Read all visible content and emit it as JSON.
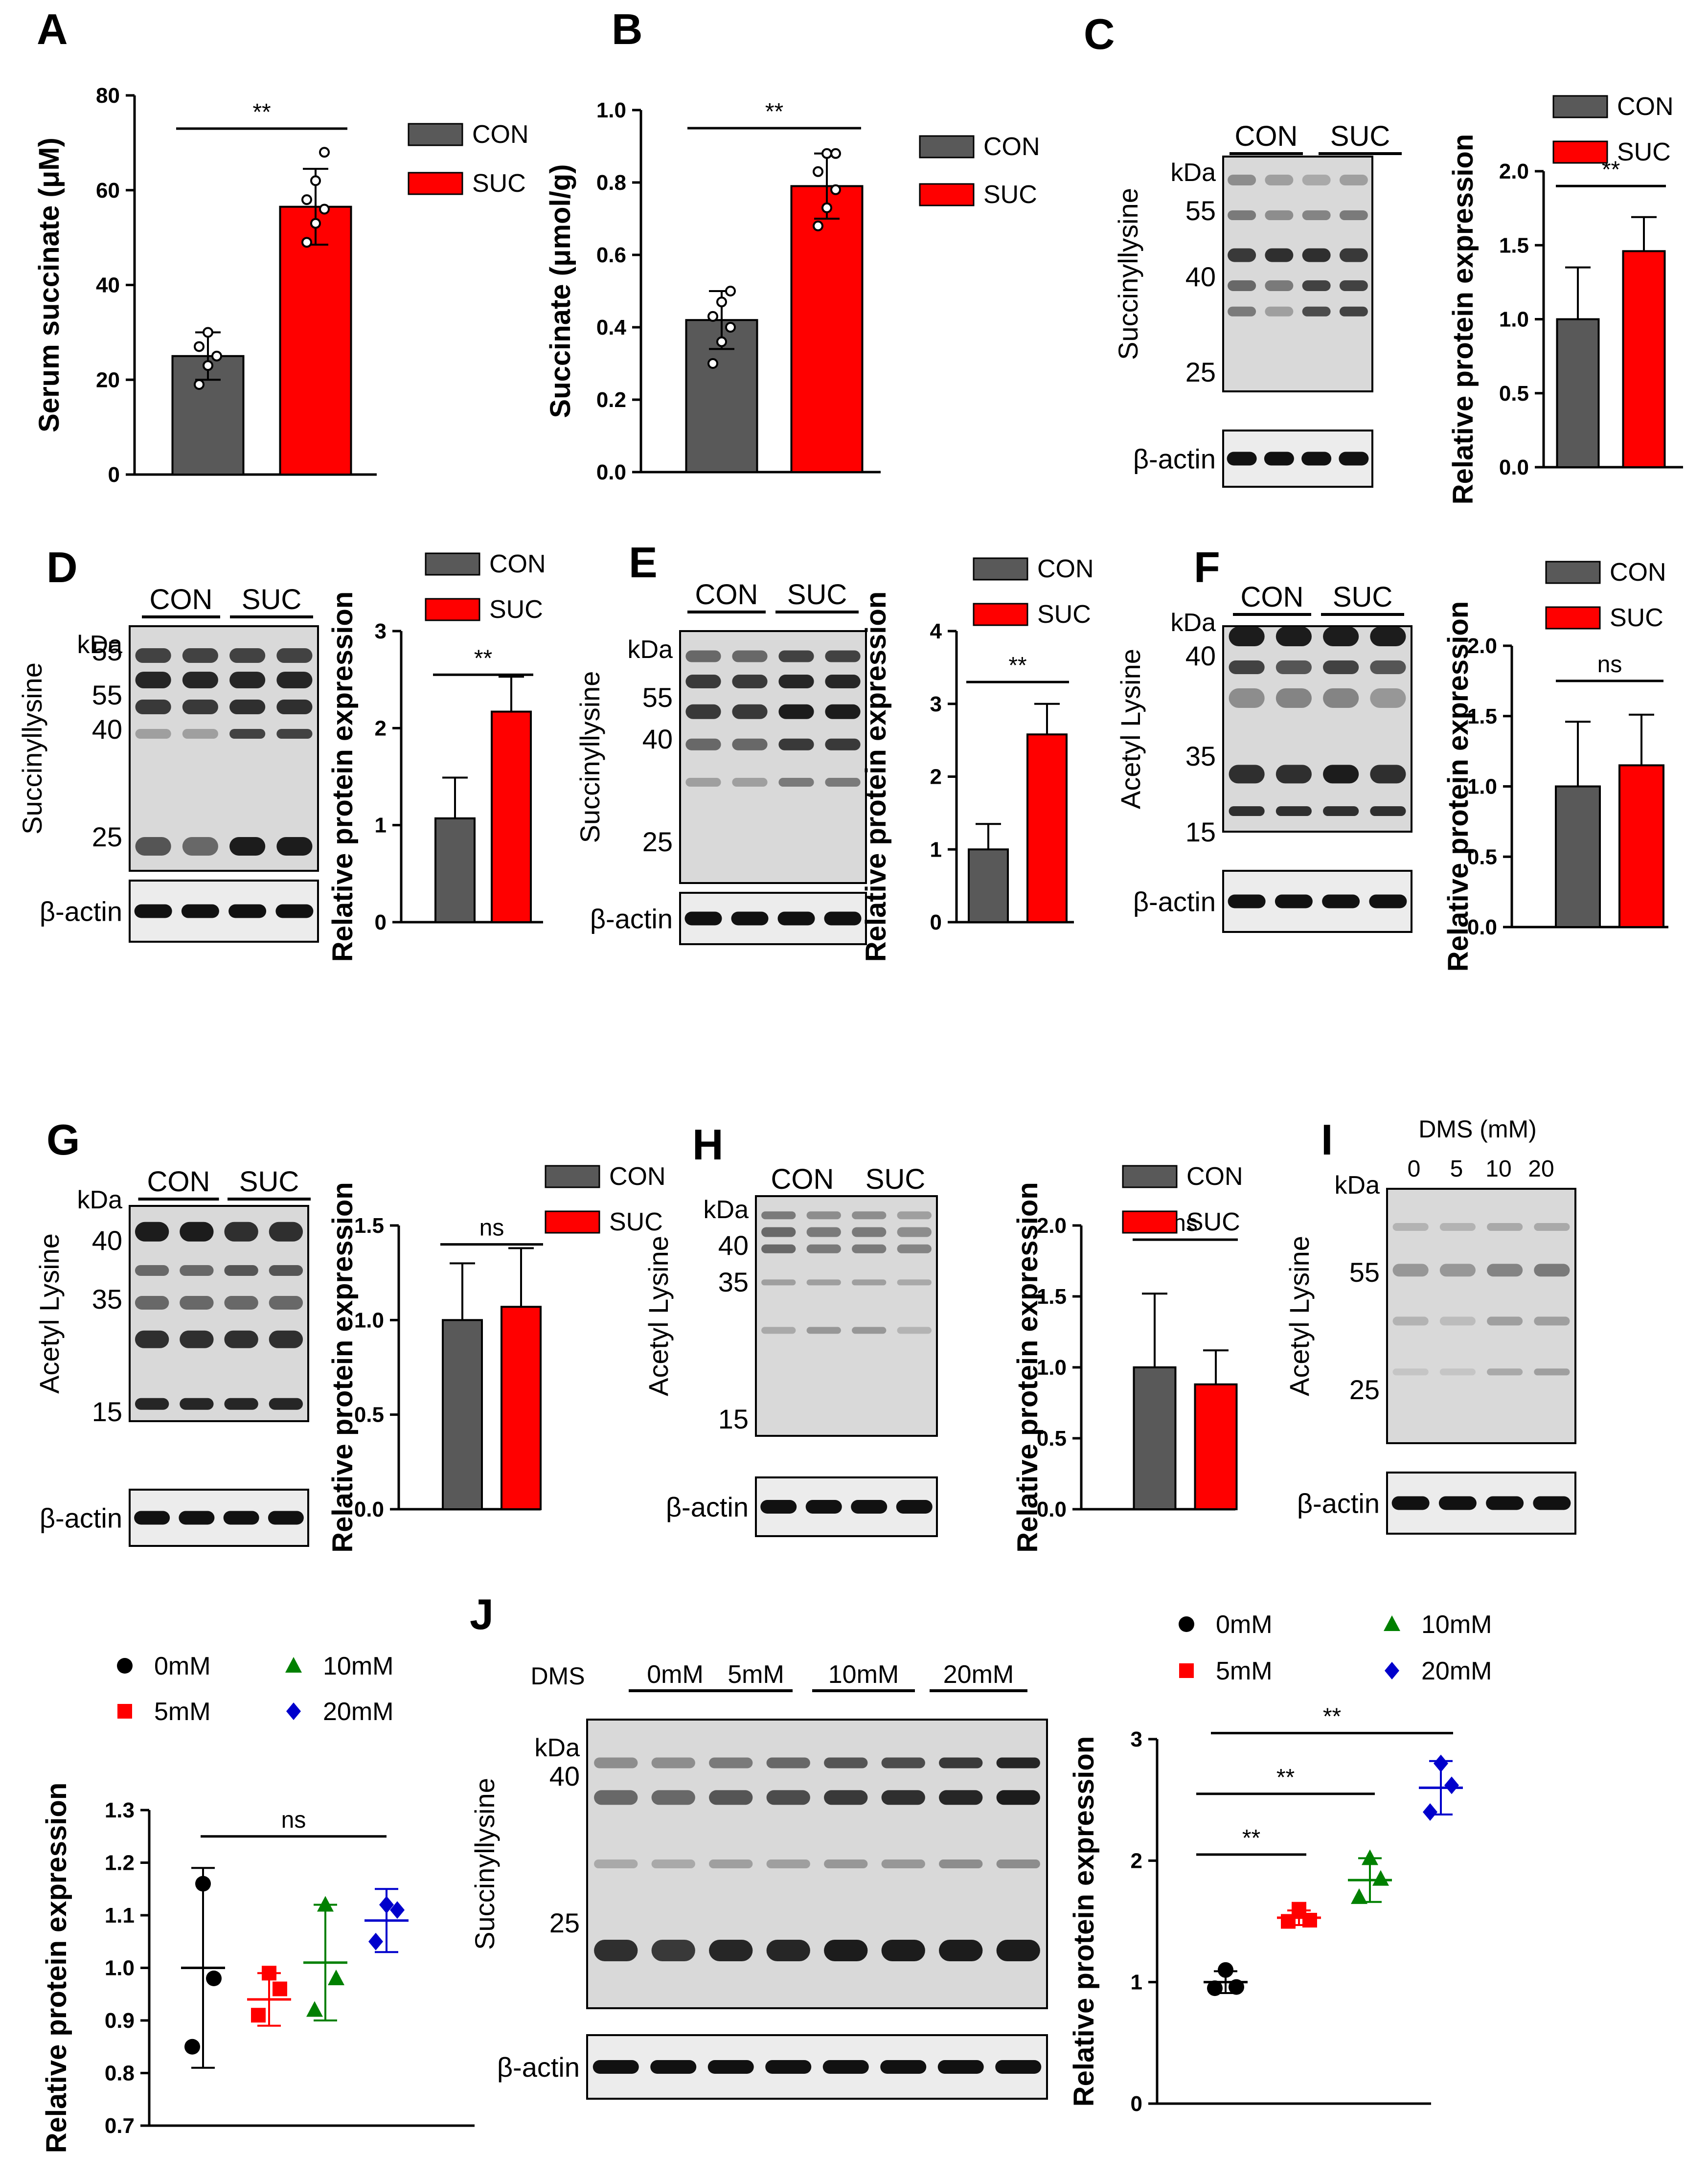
{
  "colors": {
    "con": "#595959",
    "suc": "#ff0000",
    "c0": "#000000",
    "c5": "#ff0000",
    "c10": "#008000",
    "c20": "#0000cc"
  },
  "panels": {
    "A": {
      "letter": "A"
    },
    "B": {
      "letter": "B"
    },
    "C": {
      "letter": "C",
      "blot_title": "Succinyllysine",
      "kda": "kDa",
      "markers": [
        "55",
        "40",
        "25"
      ],
      "groups": [
        "CON",
        "SUC"
      ],
      "actin": "β-actin"
    },
    "D": {
      "letter": "D",
      "blot_title": "Succinyllysine",
      "kda": "kDa",
      "markers": [
        "55",
        "55",
        "40",
        "25"
      ],
      "groups": [
        "CON",
        "SUC"
      ],
      "actin": "β-actin"
    },
    "E": {
      "letter": "E",
      "blot_title": "Succinyllysine",
      "kda": "kDa",
      "markers": [
        "55",
        "40",
        "25"
      ],
      "groups": [
        "CON",
        "SUC"
      ],
      "actin": "β-actin"
    },
    "F": {
      "letter": "F",
      "blot_title": "Acetyl Lysine",
      "kda": "kDa",
      "markers": [
        "40",
        "35",
        "15"
      ],
      "groups": [
        "CON",
        "SUC"
      ],
      "actin": "β-actin"
    },
    "G": {
      "letter": "G",
      "blot_title": "Acetyl Lysine",
      "kda": "kDa",
      "markers": [
        "40",
        "35",
        "15"
      ],
      "groups": [
        "CON",
        "SUC"
      ],
      "actin": "β-actin"
    },
    "H": {
      "letter": "H",
      "blot_title": "Acetyl Lysine",
      "kda": "kDa",
      "markers": [
        "40",
        "35",
        "15"
      ],
      "groups": [
        "CON",
        "SUC"
      ],
      "actin": "β-actin"
    },
    "I": {
      "letter": "I",
      "blot_title": "Acetyl Lysine",
      "kda": "kDa",
      "markers": [
        "55",
        "25"
      ],
      "treatment": "DMS (mM)",
      "groups": [
        "0",
        "5",
        "10",
        "20"
      ],
      "actin": "β-actin"
    },
    "J": {
      "letter": "J",
      "blot_title": "Succinyllysine",
      "kda": "kDa",
      "markers": [
        "40",
        "25"
      ],
      "treatment": "DMS",
      "groups": [
        "0mM",
        "5mM",
        "10mM",
        "20mM"
      ],
      "actin": "β-actin"
    }
  },
  "chart_data": [
    {
      "id": "A",
      "type": "bar",
      "ylabel": "Serum succinate (μM)",
      "categories": [
        "CON",
        "SUC"
      ],
      "values": [
        25,
        56.5
      ],
      "errors": [
        5,
        8
      ],
      "points": [
        [
          19,
          23,
          25,
          27,
          30
        ],
        [
          49,
          53,
          56,
          58,
          62,
          68
        ]
      ],
      "yticks": [
        "0",
        "20",
        "40",
        "60",
        "80"
      ],
      "ylim": [
        0,
        80
      ],
      "sig": "**",
      "legend": [
        "CON",
        "SUC"
      ]
    },
    {
      "id": "B",
      "type": "bar",
      "ylabel": "Succinate (μmol/g)",
      "categories": [
        "CON",
        "SUC"
      ],
      "values": [
        0.42,
        0.79
      ],
      "errors": [
        0.08,
        0.09
      ],
      "points": [
        [
          0.3,
          0.36,
          0.4,
          0.43,
          0.47,
          0.5
        ],
        [
          0.68,
          0.73,
          0.78,
          0.83,
          0.88,
          0.88
        ]
      ],
      "yticks": [
        "0.0",
        "0.2",
        "0.4",
        "0.6",
        "0.8",
        "1.0"
      ],
      "ylim": [
        0,
        1
      ],
      "sig": "**",
      "legend": [
        "CON",
        "SUC"
      ]
    },
    {
      "id": "C",
      "type": "bar",
      "ylabel": "Relative protein expression",
      "categories": [
        "CON",
        "SUC"
      ],
      "values": [
        1.0,
        1.46
      ],
      "errors": [
        0.35,
        0.23
      ],
      "yticks": [
        "0.0",
        "0.5",
        "1.0",
        "1.5",
        "2.0"
      ],
      "ylim": [
        0,
        2
      ],
      "sig": "**",
      "legend": [
        "CON",
        "SUC"
      ]
    },
    {
      "id": "D",
      "type": "bar",
      "ylabel": "Relative protein expression",
      "categories": [
        "CON",
        "SUC"
      ],
      "values": [
        1.07,
        2.17
      ],
      "errors": [
        0.42,
        0.36
      ],
      "yticks": [
        "0",
        "1",
        "2",
        "3"
      ],
      "ylim": [
        0,
        3
      ],
      "sig": "**",
      "legend": [
        "CON",
        "SUC"
      ]
    },
    {
      "id": "E",
      "type": "bar",
      "ylabel": "Relative protein expression",
      "categories": [
        "CON",
        "SUC"
      ],
      "values": [
        1.0,
        2.58
      ],
      "errors": [
        0.35,
        0.42
      ],
      "yticks": [
        "0",
        "1",
        "2",
        "3",
        "4"
      ],
      "ylim": [
        0,
        4
      ],
      "sig": "**",
      "legend": [
        "CON",
        "SUC"
      ]
    },
    {
      "id": "F",
      "type": "bar",
      "ylabel": "Relative protein expression",
      "categories": [
        "CON",
        "SUC"
      ],
      "values": [
        1.0,
        1.15
      ],
      "errors": [
        0.46,
        0.36
      ],
      "yticks": [
        "0.0",
        "0.5",
        "1.0",
        "1.5",
        "2.0"
      ],
      "ylim": [
        0,
        2
      ],
      "sig": "ns",
      "legend": [
        "CON",
        "SUC"
      ]
    },
    {
      "id": "G",
      "type": "bar",
      "ylabel": "Relative protein expression",
      "categories": [
        "CON",
        "SUC"
      ],
      "values": [
        1.0,
        1.07
      ],
      "errors": [
        0.3,
        0.31
      ],
      "yticks": [
        "0.0",
        "0.5",
        "1.0",
        "1.5"
      ],
      "ylim": [
        0,
        1.5
      ],
      "sig": "ns",
      "legend": [
        "CON",
        "SUC"
      ]
    },
    {
      "id": "H",
      "type": "bar",
      "ylabel": "Relative protein expression",
      "categories": [
        "CON",
        "SUC"
      ],
      "values": [
        1.0,
        0.88
      ],
      "errors": [
        0.52,
        0.24
      ],
      "yticks": [
        "0.0",
        "0.5",
        "1.0",
        "1.5",
        "2.0"
      ],
      "ylim": [
        0,
        2
      ],
      "sig": "ns",
      "legend": [
        "CON",
        "SUC"
      ]
    },
    {
      "id": "I",
      "type": "scatter",
      "ylabel": "Relative protein expression",
      "categories": [
        "0mM",
        "5mM",
        "10mM",
        "20mM"
      ],
      "means": [
        1.0,
        0.94,
        1.01,
        1.09
      ],
      "errors": [
        0.19,
        0.05,
        0.11,
        0.06
      ],
      "points": [
        [
          1.16,
          0.98,
          0.85
        ],
        [
          0.99,
          0.96,
          0.91
        ],
        [
          1.12,
          0.98,
          0.92
        ],
        [
          1.12,
          1.11,
          1.05
        ]
      ],
      "yticks": [
        "0.7",
        "0.8",
        "0.9",
        "1.0",
        "1.1",
        "1.2",
        "1.3"
      ],
      "ylim": [
        0.7,
        1.3
      ],
      "sig": "ns",
      "legend": [
        "0mM",
        "10mM",
        "5mM",
        "20mM"
      ]
    },
    {
      "id": "J",
      "type": "scatter",
      "ylabel": "Relative protein expression",
      "categories": [
        "0mM",
        "5mM",
        "10mM",
        "20mM"
      ],
      "means": [
        1.0,
        1.53,
        1.84,
        2.6
      ],
      "errors": [
        0.09,
        0.06,
        0.18,
        0.22
      ],
      "points": [
        [
          1.1,
          0.96,
          0.95
        ],
        [
          1.6,
          1.51,
          1.5
        ],
        [
          2.02,
          1.85,
          1.7
        ],
        [
          2.8,
          2.62,
          2.4
        ]
      ],
      "yticks": [
        "0",
        "1",
        "2",
        "3"
      ],
      "ylim": [
        0,
        3
      ],
      "sig": [
        "**",
        "**",
        "**"
      ],
      "legend": [
        "0mM",
        "10mM",
        "5mM",
        "20mM"
      ]
    }
  ]
}
